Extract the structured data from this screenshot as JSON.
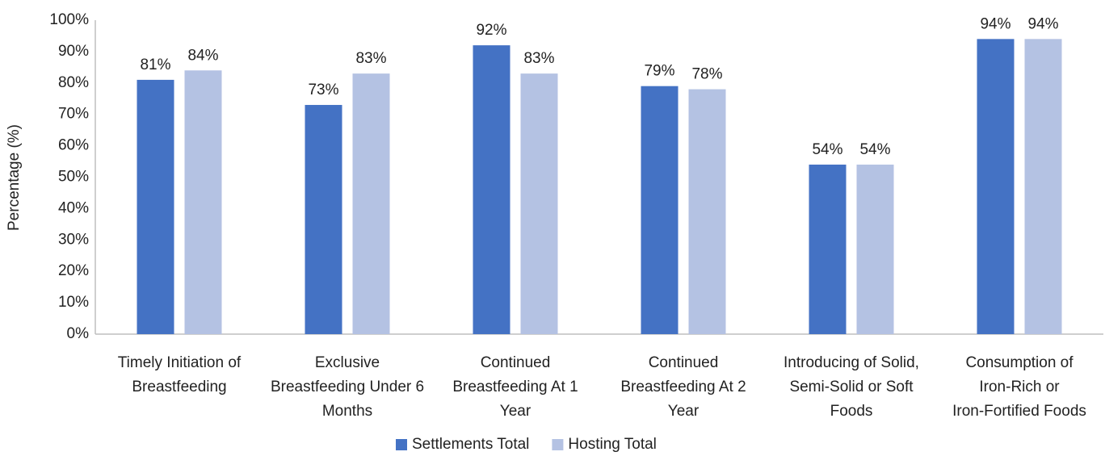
{
  "chart_data": {
    "type": "bar",
    "y_label": "Percentage (%)",
    "categories": [
      "Timely Initiation of Breastfeeding",
      "Exclusive Breastfeeding Under 6 Months",
      "Continued Breastfeeding At 1 Year",
      "Continued Breastfeeding At 2 Year",
      "Introducing of Solid, Semi-Solid or Soft Foods",
      "Consumption of Iron-Rich or Iron-Fortified Foods"
    ],
    "series": [
      {
        "name": "Settlements Total",
        "color": "#4472c4",
        "values": [
          81,
          73,
          92,
          79,
          54,
          94
        ],
        "value_labels": [
          "81%",
          "73%",
          "92%",
          "79%",
          "54%",
          "94%"
        ]
      },
      {
        "name": "Hosting Total",
        "color": "#b4c2e3",
        "values": [
          84,
          83,
          83,
          78,
          54,
          94
        ],
        "value_labels": [
          "84%",
          "83%",
          "83%",
          "78%",
          "54%",
          "94%"
        ]
      }
    ],
    "ylim": [
      0,
      100
    ],
    "yticks": [
      {
        "value": 0,
        "label": "0%"
      },
      {
        "value": 10,
        "label": "10%"
      },
      {
        "value": 20,
        "label": "20%"
      },
      {
        "value": 30,
        "label": "30%"
      },
      {
        "value": 40,
        "label": "40%"
      },
      {
        "value": 50,
        "label": "50%"
      },
      {
        "value": 60,
        "label": "60%"
      },
      {
        "value": 70,
        "label": "70%"
      },
      {
        "value": 80,
        "label": "80%"
      },
      {
        "value": 90,
        "label": "90%"
      },
      {
        "value": 100,
        "label": "100%"
      }
    ],
    "grid": false,
    "legend": "bottom"
  }
}
